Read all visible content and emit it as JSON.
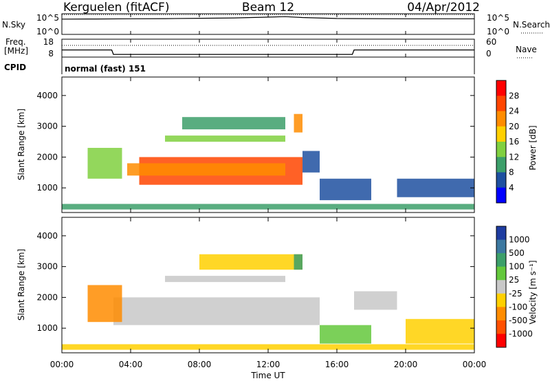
{
  "header": {
    "left_title": "Kerguelen (fitACF)",
    "center_title": "Beam 12",
    "right_title": "04/Apr/2012"
  },
  "top_panels": {
    "nsky": {
      "label": "N.Sky",
      "ticks": [
        "10^5",
        "10^0"
      ],
      "right_label": "N.Search",
      "right_ticks": [
        "10^5",
        "10^0"
      ]
    },
    "freq": {
      "label_line1": "Freq.",
      "label_line2": "[MHz]",
      "ticks": [
        "18",
        "8"
      ],
      "right_label": "Nave",
      "right_ticks": [
        "60",
        "0"
      ]
    },
    "cpid": {
      "label": "CPID",
      "mode_text": "normal (fast) 151"
    }
  },
  "power_panel": {
    "ylabel": "Slant Range [km]",
    "yticks": [
      "4000",
      "3000",
      "2000",
      "1000"
    ],
    "colorbar_label": "Power [dB]",
    "colorbar_ticks": [
      "28",
      "24",
      "20",
      "16",
      "12",
      "8",
      "4"
    ],
    "colorbar_colors": [
      "#ff0000",
      "#ff4500",
      "#ff8c00",
      "#ffd000",
      "#80d040",
      "#3c9f6a",
      "#1e50a0",
      "#0000ff"
    ]
  },
  "velocity_panel": {
    "ylabel": "Slant Range [km]",
    "yticks": [
      "4000",
      "3000",
      "2000",
      "1000"
    ],
    "colorbar_label": "Velocity [m s⁻¹]",
    "colorbar_ticks": [
      "1000",
      "500",
      "100",
      "25",
      "-25",
      "-100",
      "-500",
      "-1000"
    ],
    "colorbar_colors": [
      "#1e3ca0",
      "#3c78a0",
      "#3c9f6a",
      "#64c83c",
      "#c8c8c8",
      "#ffd000",
      "#ff8c00",
      "#ff5000",
      "#ff0000"
    ]
  },
  "xaxis": {
    "label": "Time UT",
    "ticks": [
      "00:00",
      "04:00",
      "08:00",
      "12:00",
      "16:00",
      "20:00",
      "00:00"
    ]
  },
  "chart_data": [
    {
      "type": "line",
      "name": "N.Sky",
      "x": [
        0,
        2,
        4,
        6,
        8,
        10,
        11,
        12,
        13,
        14,
        16,
        20,
        24
      ],
      "y": [
        5000,
        5500,
        6000,
        6500,
        8000,
        9500,
        12000,
        15000,
        20000,
        12000,
        7000,
        6000,
        6000
      ],
      "xlim": [
        0,
        24
      ],
      "ylim": [
        1,
        100000
      ],
      "yscale": "log"
    },
    {
      "type": "line",
      "name": "Freq.",
      "x": [
        0,
        2.9,
        3.0,
        16.9,
        17.0,
        24
      ],
      "y": [
        12,
        12,
        9.5,
        9.5,
        12,
        12
      ],
      "xlim": [
        0,
        24
      ],
      "ylim": [
        8,
        18
      ]
    },
    {
      "type": "heatmap",
      "title": "Power [dB]",
      "x_range": [
        0,
        24
      ],
      "y_range": [
        200,
        4600
      ],
      "clim": [
        0,
        30
      ],
      "regions": [
        {
          "t": [
            0,
            24
          ],
          "r": [
            300,
            480
          ],
          "value": 8
        },
        {
          "t": [
            4.5,
            14
          ],
          "r": [
            1100,
            2000
          ],
          "value": 26
        },
        {
          "t": [
            3.8,
            13
          ],
          "r": [
            1400,
            1800
          ],
          "value": 22
        },
        {
          "t": [
            1.5,
            3.5
          ],
          "r": [
            1300,
            2300
          ],
          "value": 14
        },
        {
          "t": [
            6,
            13
          ],
          "r": [
            2500,
            2700
          ],
          "value": 12
        },
        {
          "t": [
            7,
            13
          ],
          "r": [
            2900,
            3300
          ],
          "value": 10
        },
        {
          "t": [
            13.5,
            14
          ],
          "r": [
            2800,
            3400
          ],
          "value": 20
        },
        {
          "t": [
            14,
            15
          ],
          "r": [
            1500,
            2200
          ],
          "value": 6
        },
        {
          "t": [
            15,
            18
          ],
          "r": [
            600,
            1300
          ],
          "value": 6
        },
        {
          "t": [
            19.5,
            24
          ],
          "r": [
            700,
            1300
          ],
          "value": 6
        }
      ]
    },
    {
      "type": "heatmap",
      "title": "Velocity [m s⁻¹]",
      "x_range": [
        0,
        24
      ],
      "y_range": [
        200,
        4600
      ],
      "clim": [
        -1000,
        1000
      ],
      "regions": [
        {
          "t": [
            0,
            24
          ],
          "r": [
            300,
            480
          ],
          "value": -50
        },
        {
          "t": [
            3,
            15
          ],
          "r": [
            1100,
            2000
          ],
          "value": 0
        },
        {
          "t": [
            1.5,
            3.5
          ],
          "r": [
            1200,
            2400
          ],
          "value": -300
        },
        {
          "t": [
            6,
            13
          ],
          "r": [
            2500,
            2700
          ],
          "value": 0
        },
        {
          "t": [
            8,
            14
          ],
          "r": [
            2900,
            3400
          ],
          "value": -80
        },
        {
          "t": [
            13.5,
            14
          ],
          "r": [
            2900,
            3400
          ],
          "value": 150
        },
        {
          "t": [
            15,
            18
          ],
          "r": [
            500,
            1100
          ],
          "value": 60
        },
        {
          "t": [
            17,
            19.5
          ],
          "r": [
            1600,
            2200
          ],
          "value": 0
        },
        {
          "t": [
            20,
            24
          ],
          "r": [
            500,
            1300
          ],
          "value": -40
        }
      ]
    }
  ]
}
